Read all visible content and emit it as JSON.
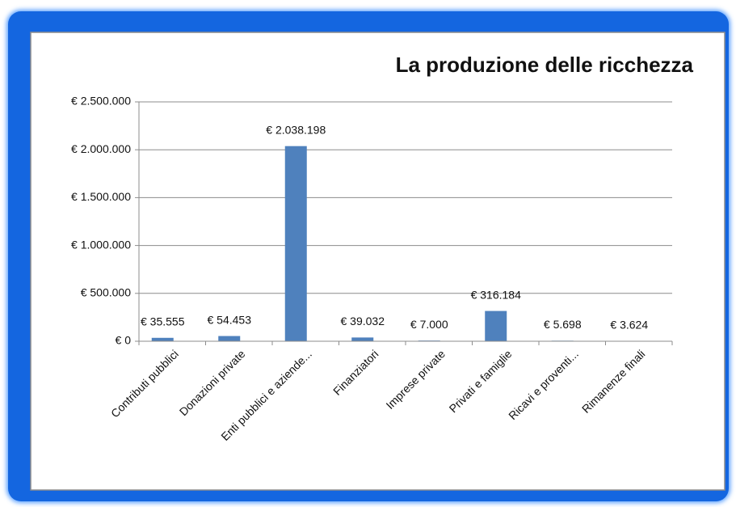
{
  "chart_data": {
    "type": "bar",
    "title": "La produzione delle ricchezza",
    "categories": [
      "Contributi pubblici",
      "Donazioni private",
      "Enti pubblici e aziende...",
      "Finanziatori",
      "Imprese private",
      "Privati e famiglie",
      "Ricavi e proventi...",
      "Rimanenze finali"
    ],
    "values": [
      35555,
      54453,
      2038198,
      39032,
      7000,
      316184,
      5698,
      3624
    ],
    "value_labels": [
      "€ 35.555",
      "€ 54.453",
      "€ 2.038.198",
      "€ 39.032",
      "€ 7.000",
      "€ 316.184",
      "€ 5.698",
      "€ 3.624"
    ],
    "color": "#4f81bd",
    "ylim": [
      0,
      2500000
    ],
    "yticks": [
      {
        "value": 0,
        "label": "€ 0"
      },
      {
        "value": 500000,
        "label": "€ 500.000"
      },
      {
        "value": 1000000,
        "label": "€ 1.000.000"
      },
      {
        "value": 1500000,
        "label": "€ 1.500.000"
      },
      {
        "value": 2000000,
        "label": "€ 2.000.000"
      },
      {
        "value": 2500000,
        "label": "€ 2.500.000"
      }
    ],
    "grid": true
  }
}
